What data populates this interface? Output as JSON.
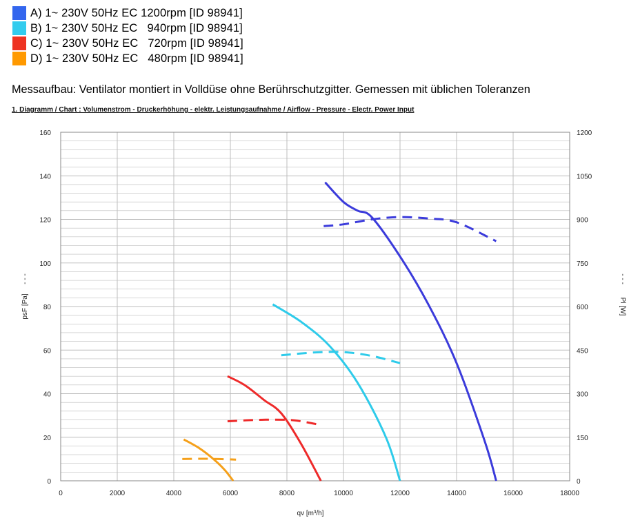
{
  "colors": {
    "A": "#3b3bdb",
    "B": "#2ecbea",
    "C": "#ee2a2a",
    "D": "#f5a01a",
    "grid": "#bdbdbd"
  },
  "legend": [
    {
      "key": "A",
      "label": "A) 1~ 230V 50Hz EC 1200rpm [ID 98941]",
      "color": "#3366ee"
    },
    {
      "key": "B",
      "label": "B) 1~ 230V 50Hz EC   940rpm [ID 98941]",
      "color": "#33ccee"
    },
    {
      "key": "C",
      "label": "C) 1~ 230V 50Hz EC   720rpm [ID 98941]",
      "color": "#ee3322"
    },
    {
      "key": "D",
      "label": "D) 1~ 230V 50Hz EC   480rpm [ID 98941]",
      "color": "#ff9900"
    }
  ],
  "setup_text": "Messaufbau: Ventilator montiert in Volldüse ohne Berührschutzgitter. Gemessen mit üblichen  Toleranzen",
  "chart_heading": "1. Diagramm / Chart :   Volumenstrom - Druckerhöhung - elektr. Leistungsaufnahme / Airflow - Pressure - Electr. Power Input",
  "chart_data": {
    "type": "line",
    "title": "1. Diagramm / Chart :   Volumenstrom - Druckerhöhung - elektr. Leistungsaufnahme / Airflow - Pressure - Electr. Power Input",
    "xlabel": "qv [m³/h]",
    "ylabel": "psF [Pa]",
    "y2label": "Pl [W]",
    "xlim": [
      0,
      18000
    ],
    "ylim": [
      0,
      160
    ],
    "y2lim": [
      0,
      1200
    ],
    "x_ticks": [
      0,
      2000,
      4000,
      6000,
      8000,
      10000,
      12000,
      14000,
      16000,
      18000
    ],
    "y_ticks": [
      0,
      20,
      40,
      60,
      80,
      100,
      120,
      140,
      160
    ],
    "y2_ticks": [
      0,
      150,
      300,
      450,
      600,
      750,
      900,
      1050,
      1200
    ],
    "grid": true,
    "series": [
      {
        "name": "A",
        "kind": "pressure",
        "color_key": "A",
        "x": [
          9350,
          10000,
          10500,
          11000,
          12000,
          13000,
          14000,
          15000,
          15400
        ],
        "y": [
          137,
          128,
          124,
          121,
          103,
          81,
          54,
          18,
          0
        ]
      },
      {
        "name": "B",
        "kind": "pressure",
        "color_key": "B",
        "x": [
          7500,
          8500,
          9500,
          10500,
          11500,
          12000
        ],
        "y": [
          81,
          73,
          62,
          45,
          20,
          0
        ]
      },
      {
        "name": "C",
        "kind": "pressure",
        "color_key": "C",
        "x": [
          5900,
          6500,
          7200,
          7800,
          8500,
          9200
        ],
        "y": [
          48,
          44,
          37,
          31,
          17,
          0
        ]
      },
      {
        "name": "D",
        "kind": "pressure",
        "color_key": "D",
        "x": [
          4350,
          4900,
          5400,
          5800,
          6100
        ],
        "y": [
          19,
          15,
          10,
          5,
          0
        ]
      },
      {
        "name": "A",
        "kind": "power",
        "color_key": "A",
        "x": [
          9300,
          10000,
          11000,
          12000,
          13000,
          14000,
          15400
        ],
        "y": [
          877,
          883,
          900,
          908,
          903,
          890,
          825
        ]
      },
      {
        "name": "B",
        "kind": "power",
        "color_key": "B",
        "x": [
          7800,
          9000,
          10000,
          11000,
          12000
        ],
        "y": [
          432,
          442,
          443,
          430,
          405
        ]
      },
      {
        "name": "C",
        "kind": "power",
        "color_key": "C",
        "x": [
          5900,
          7000,
          8000,
          8500,
          9200
        ],
        "y": [
          205,
          210,
          210,
          205,
          192
        ]
      },
      {
        "name": "D",
        "kind": "power",
        "color_key": "D",
        "x": [
          4300,
          5000,
          5600,
          6200
        ],
        "y": [
          75,
          76,
          75,
          73
        ]
      }
    ]
  }
}
